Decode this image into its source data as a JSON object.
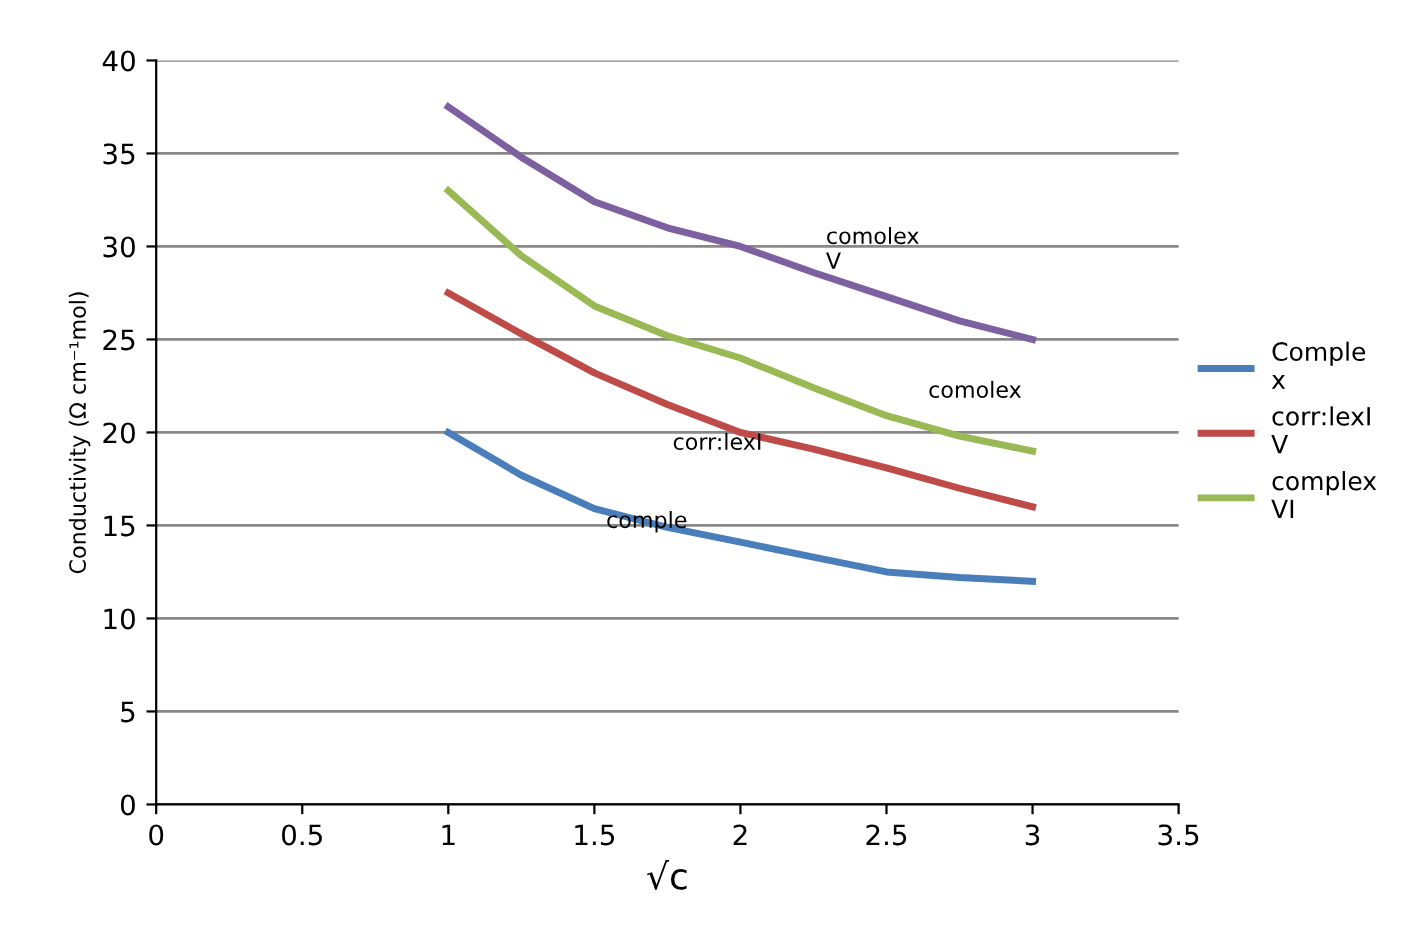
{
  "chart_data": {
    "type": "line",
    "xlabel": "√c",
    "ylabel": "Conductivity (Ω cm⁻¹mol)",
    "x": [
      1,
      1.25,
      1.5,
      1.75,
      2,
      2.25,
      2.5,
      2.75,
      3
    ],
    "series": [
      {
        "name": "Comple\nx",
        "color": "#4a7ebb",
        "values": [
          20,
          17.7,
          15.9,
          14.9,
          14.1,
          13.3,
          12.5,
          12.2,
          12.0
        ]
      },
      {
        "name": "corr:lexI\nV",
        "color": "#be4b48",
        "values": [
          27.5,
          25.3,
          23.2,
          21.5,
          20.0,
          19.1,
          18.1,
          17.0,
          16.0
        ]
      },
      {
        "name": "complex\nVI",
        "color": "#98b954",
        "values": [
          33,
          29.5,
          26.8,
          25.2,
          24.0,
          22.4,
          20.9,
          19.8,
          19.0
        ]
      },
      {
        "color": "#7d60a0",
        "values": [
          37.5,
          34.8,
          32.4,
          31.0,
          30.0,
          28.6,
          27.3,
          26.0,
          25.0
        ]
      }
    ],
    "annotations": [
      "comolex\nV",
      "comolex",
      "corr:lexI",
      "comple"
    ],
    "xlim": [
      0,
      3.5
    ],
    "xticks": [
      0,
      0.5,
      1,
      1.5,
      2,
      2.5,
      3,
      3.5
    ],
    "ylim": [
      0,
      40
    ],
    "yticks": [
      0,
      5,
      10,
      15,
      20,
      25,
      30,
      35,
      40
    ],
    "grid": "y",
    "legend": "right",
    "marker": "none",
    "line_style": "solid"
  }
}
